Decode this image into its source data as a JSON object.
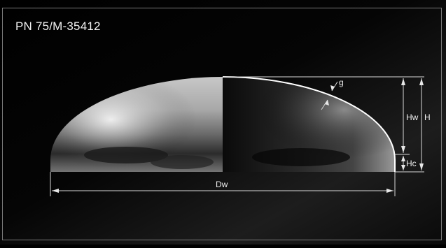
{
  "diagram": {
    "standard": "PN 75/M-35412",
    "labels": {
      "thickness": "g",
      "inner_height": "Hw",
      "total_height": "H",
      "straight_flange": "Hc",
      "inner_diameter": "Dw"
    }
  }
}
